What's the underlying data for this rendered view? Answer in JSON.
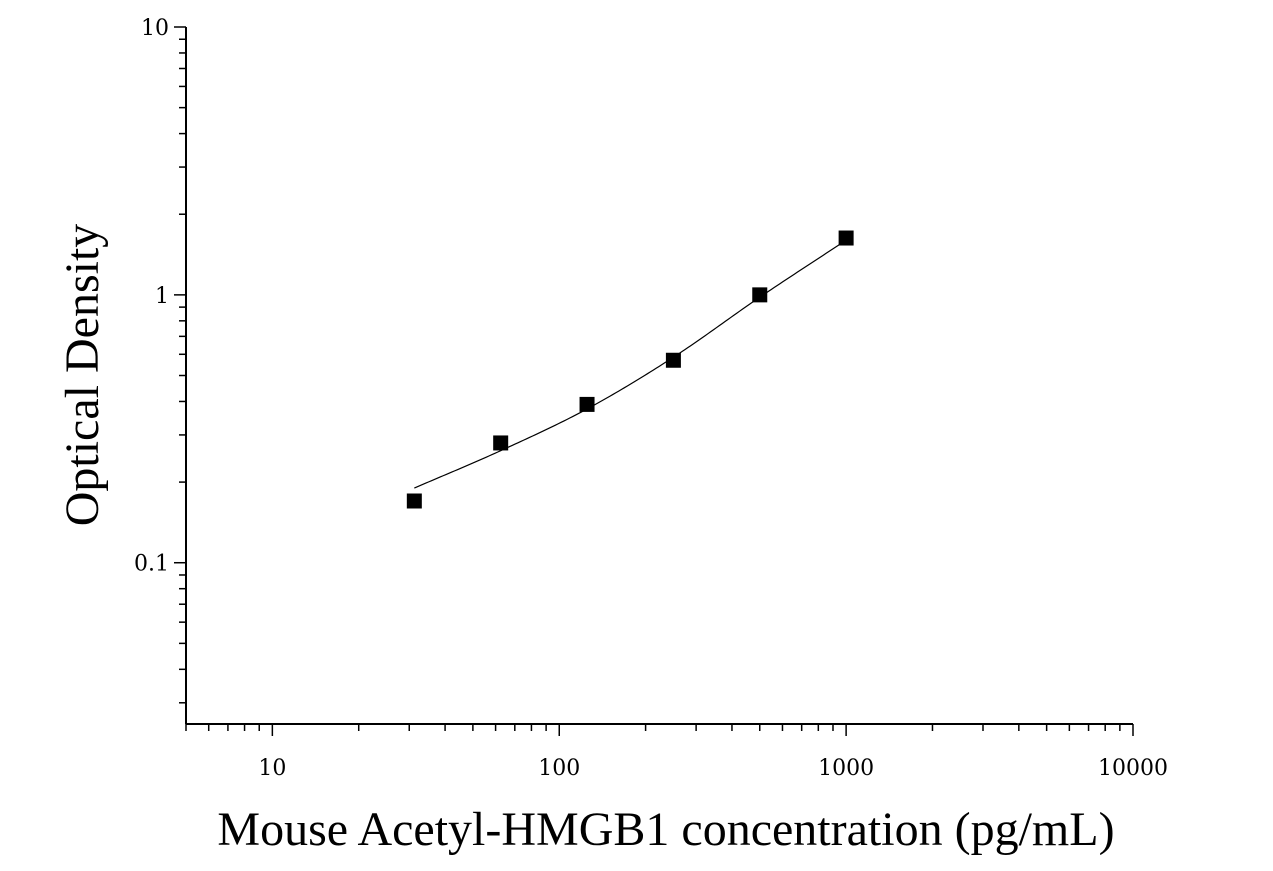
{
  "chart_data": {
    "type": "scatter",
    "xlabel": "Mouse Acetyl-HMGB1 concentration (pg/mL)",
    "ylabel": "Optical Density",
    "x_scale": "log",
    "y_scale": "log",
    "xlim": [
      5,
      10000
    ],
    "ylim": [
      0.025,
      10
    ],
    "x_ticks": [
      10,
      100,
      1000,
      10000
    ],
    "x_tick_labels": [
      "10",
      "100",
      "1000",
      "10000"
    ],
    "y_ticks": [
      0.1,
      1,
      10
    ],
    "y_tick_labels": [
      "0.1",
      "1",
      "10"
    ],
    "grid": false,
    "legend": "none",
    "series": [
      {
        "marker": "square",
        "x": [
          31.25,
          62.5,
          125,
          250,
          500,
          1000
        ],
        "y": [
          0.17,
          0.28,
          0.39,
          0.57,
          1.0,
          1.63
        ]
      }
    ],
    "fit_curve": {
      "x": [
        31.25,
        62.5,
        125,
        250,
        500,
        1000
      ],
      "y": [
        0.19,
        0.262,
        0.375,
        0.585,
        0.98,
        1.6
      ]
    }
  }
}
